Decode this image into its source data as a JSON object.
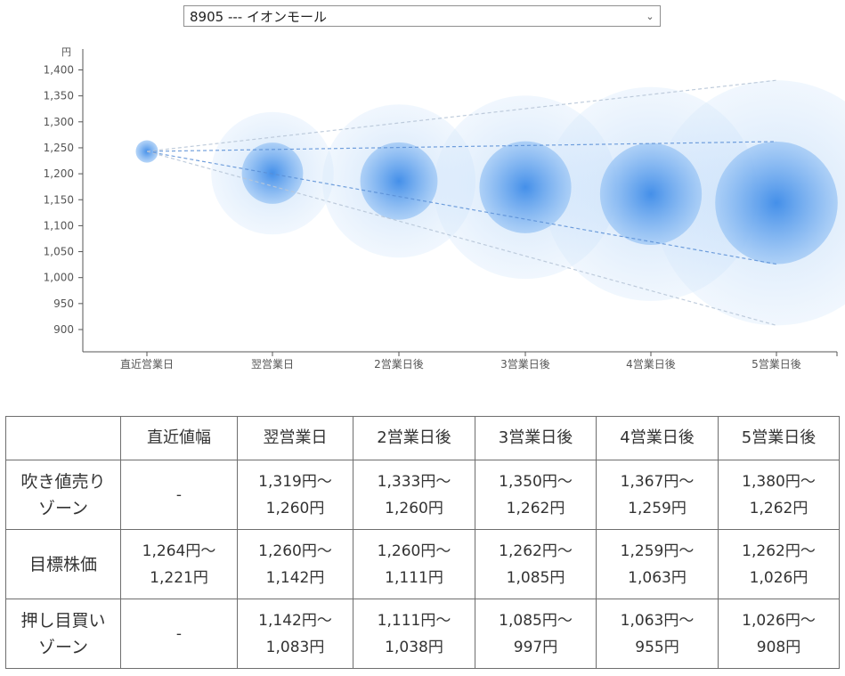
{
  "selector": {
    "selected_label": "8905 --- イオンモール"
  },
  "colors": {
    "bubble": "#3d8be8",
    "line": "#5b8fd6",
    "axis": "#555555",
    "table_border": "#6e6e6e"
  },
  "chart_data": {
    "type": "scatter",
    "ylabel": "円",
    "ylim": [
      870,
      1430
    ],
    "yticks": [
      900,
      950,
      1000,
      1050,
      1100,
      1150,
      1200,
      1250,
      1300,
      1350,
      1400
    ],
    "ytick_labels": [
      "900",
      "950",
      "1,000",
      "1,050",
      "1,100",
      "1,150",
      "1,200",
      "1,250",
      "1,300",
      "1,350",
      "1,400"
    ],
    "categories": [
      "直近営業日",
      "翌営業日",
      "2営業日後",
      "3営業日後",
      "4営業日後",
      "5営業日後"
    ],
    "center": [
      1243,
      1201,
      1186,
      1174,
      1161,
      1144
    ],
    "target_high": [
      1264,
      1260,
      1260,
      1262,
      1259,
      1262
    ],
    "target_low": [
      1221,
      1142,
      1111,
      1085,
      1063,
      1026
    ],
    "outer_high": [
      1264,
      1319,
      1333,
      1350,
      1367,
      1380
    ],
    "outer_low": [
      1221,
      1083,
      1038,
      997,
      955,
      908
    ],
    "grid": false
  },
  "table": {
    "headers": [
      "",
      "直近値幅",
      "翌営業日",
      "2営業日後",
      "3営業日後",
      "4営業日後",
      "5営業日後"
    ],
    "rows": [
      {
        "label_lines": [
          "吹き値売り",
          "ゾーン"
        ],
        "cells": [
          [
            "-"
          ],
          [
            "1,319円～",
            "1,260円"
          ],
          [
            "1,333円～",
            "1,260円"
          ],
          [
            "1,350円～",
            "1,262円"
          ],
          [
            "1,367円～",
            "1,259円"
          ],
          [
            "1,380円～",
            "1,262円"
          ]
        ]
      },
      {
        "label_lines": [
          "目標株価"
        ],
        "cells": [
          [
            "1,264円～",
            "1,221円"
          ],
          [
            "1,260円～",
            "1,142円"
          ],
          [
            "1,260円～",
            "1,111円"
          ],
          [
            "1,262円～",
            "1,085円"
          ],
          [
            "1,259円～",
            "1,063円"
          ],
          [
            "1,262円～",
            "1,026円"
          ]
        ]
      },
      {
        "label_lines": [
          "押し目買い",
          "ゾーン"
        ],
        "cells": [
          [
            "-"
          ],
          [
            "1,142円～",
            "1,083円"
          ],
          [
            "1,111円～",
            "1,038円"
          ],
          [
            "1,085円～",
            "997円"
          ],
          [
            "1,063円～",
            "955円"
          ],
          [
            "1,026円～",
            "908円"
          ]
        ]
      }
    ]
  }
}
